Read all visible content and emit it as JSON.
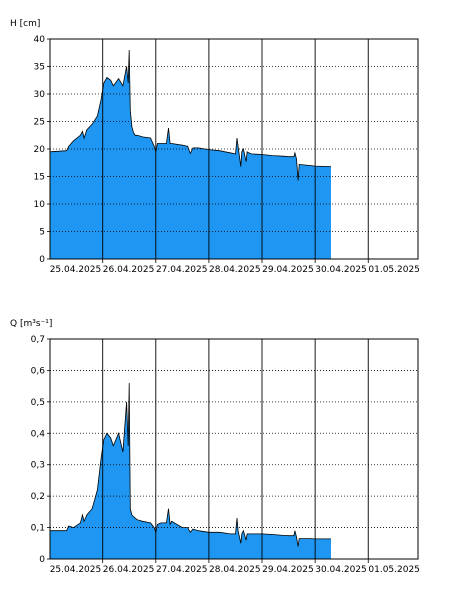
{
  "chart_data": [
    {
      "type": "area",
      "ylabel": "H [cm]",
      "ylim": [
        0,
        40
      ],
      "yticks": [
        0,
        5,
        10,
        15,
        20,
        25,
        30,
        35,
        40
      ],
      "xlim": [
        0,
        7
      ],
      "xtick_labels": [
        "25.04.2025",
        "26.04.2025",
        "27.04.2025",
        "28.04.2025",
        "29.04.2025",
        "30.04.2025",
        "01.05.2025"
      ],
      "grid": true,
      "fill_color": "#1f97f2",
      "line_color": "#000000",
      "x": [
        0.0,
        0.32,
        0.36,
        0.45,
        0.58,
        0.62,
        0.65,
        0.7,
        0.8,
        0.9,
        0.97,
        1.02,
        1.08,
        1.15,
        1.2,
        1.3,
        1.38,
        1.45,
        1.48,
        1.5,
        1.52,
        1.55,
        1.58,
        1.61,
        1.65,
        1.75,
        1.9,
        1.97,
        2.0,
        2.03,
        2.1,
        2.2,
        2.24,
        2.27,
        2.3,
        2.5,
        2.6,
        2.65,
        2.7,
        2.8,
        3.0,
        3.2,
        3.4,
        3.5,
        3.53,
        3.55,
        3.6,
        3.62,
        3.65,
        3.7,
        3.72,
        3.75,
        3.8,
        4.0,
        4.2,
        4.4,
        4.5,
        4.6,
        4.62,
        4.65,
        4.68,
        4.7,
        4.9,
        5.0,
        5.3
      ],
      "values": [
        19.5,
        19.7,
        20.5,
        21.5,
        22.5,
        23.2,
        22,
        23.5,
        24.5,
        26,
        29,
        32,
        33,
        32.5,
        31.5,
        32.8,
        31.5,
        35,
        32,
        38,
        27,
        24,
        23,
        22.5,
        22.5,
        22.2,
        22,
        20.5,
        19.5,
        21,
        21,
        21,
        23.8,
        21,
        21,
        20.7,
        20.5,
        19.2,
        20.2,
        20.2,
        19.9,
        19.7,
        19.3,
        19.1,
        22,
        20.5,
        16.8,
        19.5,
        20,
        17.7,
        19.5,
        19.3,
        19.1,
        19,
        18.8,
        18.7,
        18.6,
        18.6,
        19.3,
        18.2,
        14.3,
        17.2,
        17.0,
        16.9,
        16.8
      ]
    },
    {
      "type": "area",
      "ylabel": "Q [m³s⁻¹]",
      "ylim": [
        0,
        0.7
      ],
      "yticks": [
        "0",
        "0,1",
        "0,2",
        "0,3",
        "0,4",
        "0,5",
        "0,6",
        "0,7"
      ],
      "xlim": [
        0,
        7
      ],
      "xtick_labels": [
        "25.04.2025",
        "26.04.2025",
        "27.04.2025",
        "28.04.2025",
        "29.04.2025",
        "30.04.2025",
        "01.05.2025"
      ],
      "grid": true,
      "fill_color": "#1f97f2",
      "line_color": "#000000",
      "x": [
        0.0,
        0.32,
        0.36,
        0.45,
        0.58,
        0.62,
        0.65,
        0.7,
        0.8,
        0.9,
        0.97,
        1.02,
        1.08,
        1.15,
        1.2,
        1.3,
        1.38,
        1.45,
        1.48,
        1.5,
        1.52,
        1.55,
        1.58,
        1.61,
        1.65,
        1.75,
        1.9,
        1.97,
        2.0,
        2.03,
        2.1,
        2.2,
        2.24,
        2.27,
        2.3,
        2.5,
        2.6,
        2.65,
        2.7,
        2.8,
        3.0,
        3.2,
        3.4,
        3.5,
        3.53,
        3.55,
        3.6,
        3.62,
        3.65,
        3.7,
        3.72,
        3.75,
        3.8,
        4.0,
        4.2,
        4.4,
        4.5,
        4.6,
        4.62,
        4.65,
        4.68,
        4.7,
        4.9,
        5.0,
        5.3
      ],
      "values": [
        0.09,
        0.09,
        0.105,
        0.1,
        0.115,
        0.14,
        0.12,
        0.14,
        0.16,
        0.22,
        0.32,
        0.38,
        0.4,
        0.385,
        0.36,
        0.4,
        0.34,
        0.5,
        0.36,
        0.56,
        0.16,
        0.14,
        0.135,
        0.13,
        0.125,
        0.12,
        0.115,
        0.1,
        0.085,
        0.11,
        0.115,
        0.115,
        0.16,
        0.11,
        0.12,
        0.1,
        0.1,
        0.085,
        0.095,
        0.09,
        0.085,
        0.085,
        0.08,
        0.08,
        0.13,
        0.09,
        0.05,
        0.08,
        0.09,
        0.06,
        0.08,
        0.08,
        0.08,
        0.08,
        0.078,
        0.075,
        0.074,
        0.074,
        0.09,
        0.07,
        0.04,
        0.065,
        0.065,
        0.064,
        0.064
      ]
    }
  ]
}
